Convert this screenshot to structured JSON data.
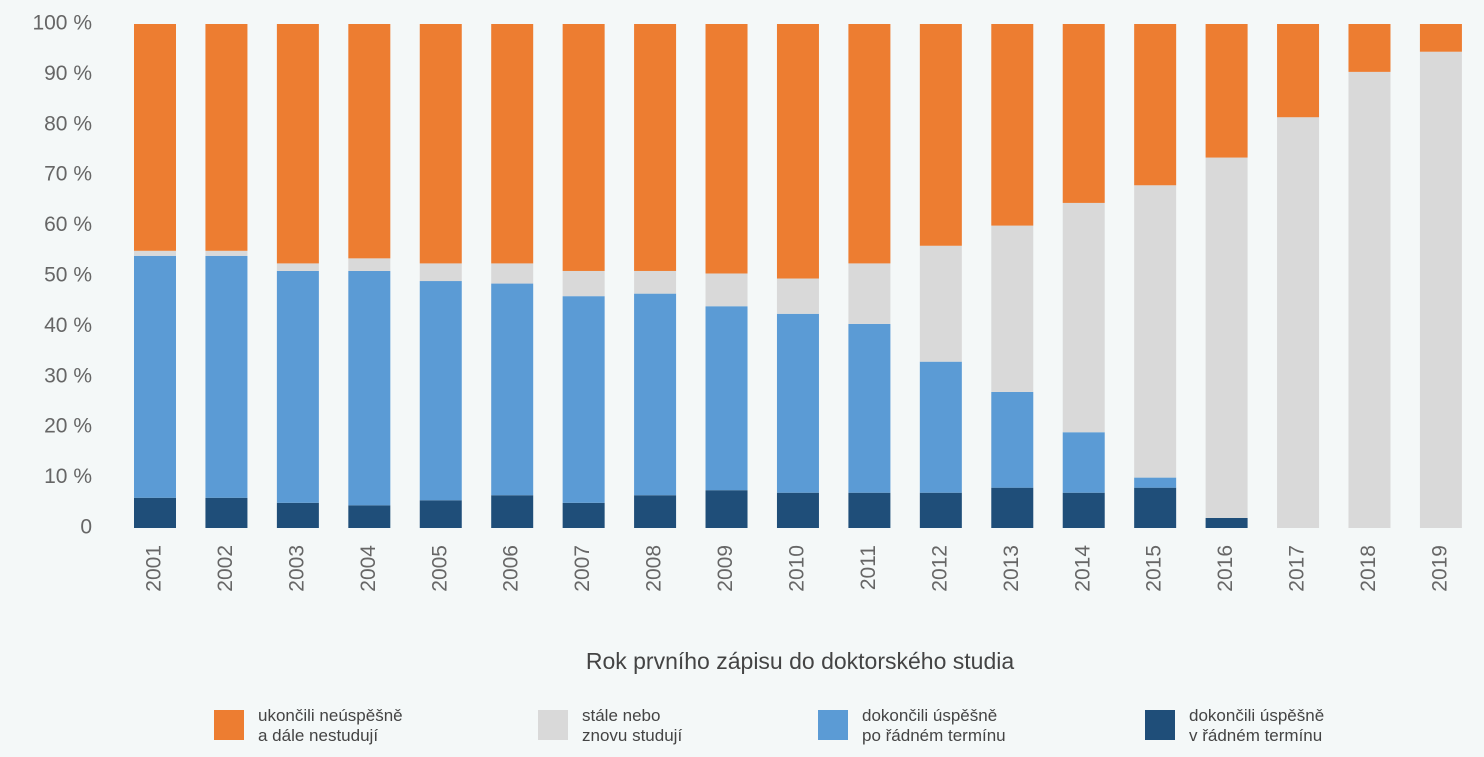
{
  "chart_data": {
    "type": "stacked_bar",
    "x_label": "Rok prvního zápisu do doktorského studia",
    "categories": [
      "2001",
      "2002",
      "2003",
      "2004",
      "2005",
      "2006",
      "2007",
      "2008",
      "2009",
      "2010",
      "2011",
      "2012",
      "2013",
      "2014",
      "2015",
      "2016",
      "2017",
      "2018",
      "2019"
    ],
    "series": [
      {
        "name": "ukončili neúspěšně\na dále nestudují",
        "color": "#ed7d31",
        "values": [
          45,
          45,
          47.5,
          46.5,
          47.5,
          47.5,
          49,
          49,
          49.5,
          50.5,
          47.5,
          44,
          40,
          35.5,
          32,
          26.5,
          18.5,
          9.5,
          5.5
        ]
      },
      {
        "name": "stále nebo\nznovu studují",
        "color": "#d9d9d9",
        "values": [
          1,
          1,
          1.5,
          2.5,
          3.5,
          4,
          5,
          4.5,
          6.5,
          7,
          12,
          23,
          33,
          45.5,
          58,
          71.5,
          81.5,
          90.5,
          94.5
        ]
      },
      {
        "name": "dokončili úspěšně\npo řádném termínu",
        "color": "#5b9bd5",
        "values": [
          48,
          48,
          46,
          46.5,
          43.5,
          42,
          41,
          40,
          36.5,
          35.5,
          33.5,
          26,
          19,
          12,
          2,
          0,
          0,
          0,
          0
        ]
      },
      {
        "name": "dokončili úspěšně\nv řádném termínu",
        "color": "#1f4e79",
        "values": [
          6,
          6,
          5,
          4.5,
          5.5,
          6.5,
          5,
          6.5,
          7.5,
          7,
          7,
          7,
          8,
          7,
          8,
          2,
          0,
          0,
          0
        ]
      }
    ],
    "ylim": [
      0,
      100
    ],
    "yticks": [
      0,
      {
        "value": 10,
        "label": "10 %"
      },
      {
        "value": 20,
        "label": "20 %"
      },
      {
        "value": 30,
        "label": "30 %"
      },
      {
        "value": 40,
        "label": "40 %"
      },
      {
        "value": 50,
        "label": "50 %"
      },
      {
        "value": 60,
        "label": "60 %"
      },
      {
        "value": 70,
        "label": "70 %"
      },
      {
        "value": 80,
        "label": "80 %"
      },
      {
        "value": 90,
        "label": "90 %"
      },
      {
        "value": 100,
        "label": "100 %"
      }
    ],
    "grid": false
  }
}
